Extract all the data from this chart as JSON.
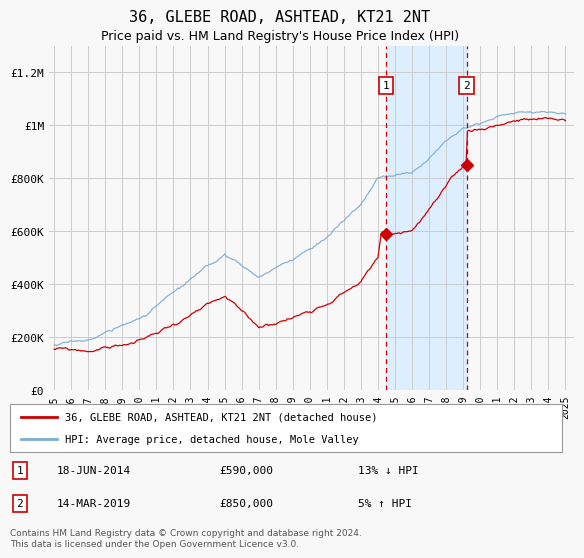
{
  "title": "36, GLEBE ROAD, ASHTEAD, KT21 2NT",
  "subtitle": "Price paid vs. HM Land Registry's House Price Index (HPI)",
  "ylabel_ticks": [
    "£0",
    "£200K",
    "£400K",
    "£600K",
    "£800K",
    "£1M",
    "£1.2M"
  ],
  "ytick_values": [
    0,
    200000,
    400000,
    600000,
    800000,
    1000000,
    1200000
  ],
  "ylim": [
    0,
    1300000
  ],
  "xlim_start": 1994.7,
  "xlim_end": 2025.5,
  "transaction1": {
    "date": "18-JUN-2014",
    "price": 590000,
    "year": 2014.46,
    "label": "1",
    "pct": "13%",
    "dir": "↓"
  },
  "transaction2": {
    "date": "14-MAR-2019",
    "price": 850000,
    "year": 2019.2,
    "label": "2",
    "pct": "5%",
    "dir": "↑"
  },
  "legend_line1": "36, GLEBE ROAD, ASHTEAD, KT21 2NT (detached house)",
  "legend_line2": "HPI: Average price, detached house, Mole Valley",
  "footnote": "Contains HM Land Registry data © Crown copyright and database right 2024.\nThis data is licensed under the Open Government Licence v3.0.",
  "red_color": "#cc0000",
  "blue_color": "#7aadd4",
  "shade_color": "#ddeeff",
  "background_color": "#f8f8f8",
  "grid_color": "#cccccc",
  "title_fontsize": 11,
  "subtitle_fontsize": 9,
  "axis_fontsize": 8
}
